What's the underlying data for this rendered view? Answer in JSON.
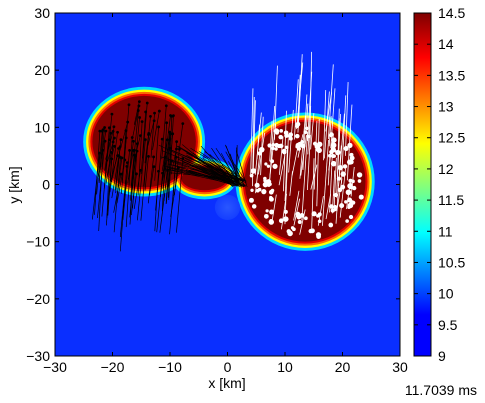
{
  "chart_data": {
    "type": "heatmap",
    "xlabel": "x [km]",
    "ylabel": "y [km]",
    "xlim": [
      -30,
      30
    ],
    "ylim": [
      -30,
      30
    ],
    "xticks": [
      -30,
      -20,
      -10,
      0,
      10,
      20,
      30
    ],
    "yticks": [
      -30,
      -20,
      -10,
      0,
      10,
      20,
      30
    ],
    "colorbar": {
      "range": [
        9,
        14.5
      ],
      "ticks": [
        9,
        9.5,
        10,
        10.5,
        11,
        11.5,
        12,
        12.5,
        13,
        13.5,
        14,
        14.5
      ],
      "colormap": "jet"
    },
    "background_value": 9.2,
    "blobs": [
      {
        "name": "left",
        "cx": -14.5,
        "cy": 7.5,
        "rx": 9,
        "ry": 8,
        "value": 14.5
      },
      {
        "name": "bridge",
        "cx": -4,
        "cy": 1,
        "rx": 4,
        "ry": 2,
        "value": 14.5
      },
      {
        "name": "right",
        "cx": 13.5,
        "cy": 0.5,
        "rx": 10.5,
        "ry": 10.5,
        "value": 14.5
      }
    ],
    "low_spot": {
      "cx": 0,
      "cy": -4,
      "r": 2.2,
      "value": 10
    },
    "vectors": {
      "left_color": "#000000",
      "right_color": "#ffffff"
    }
  },
  "time_label": "11.7039 ms"
}
